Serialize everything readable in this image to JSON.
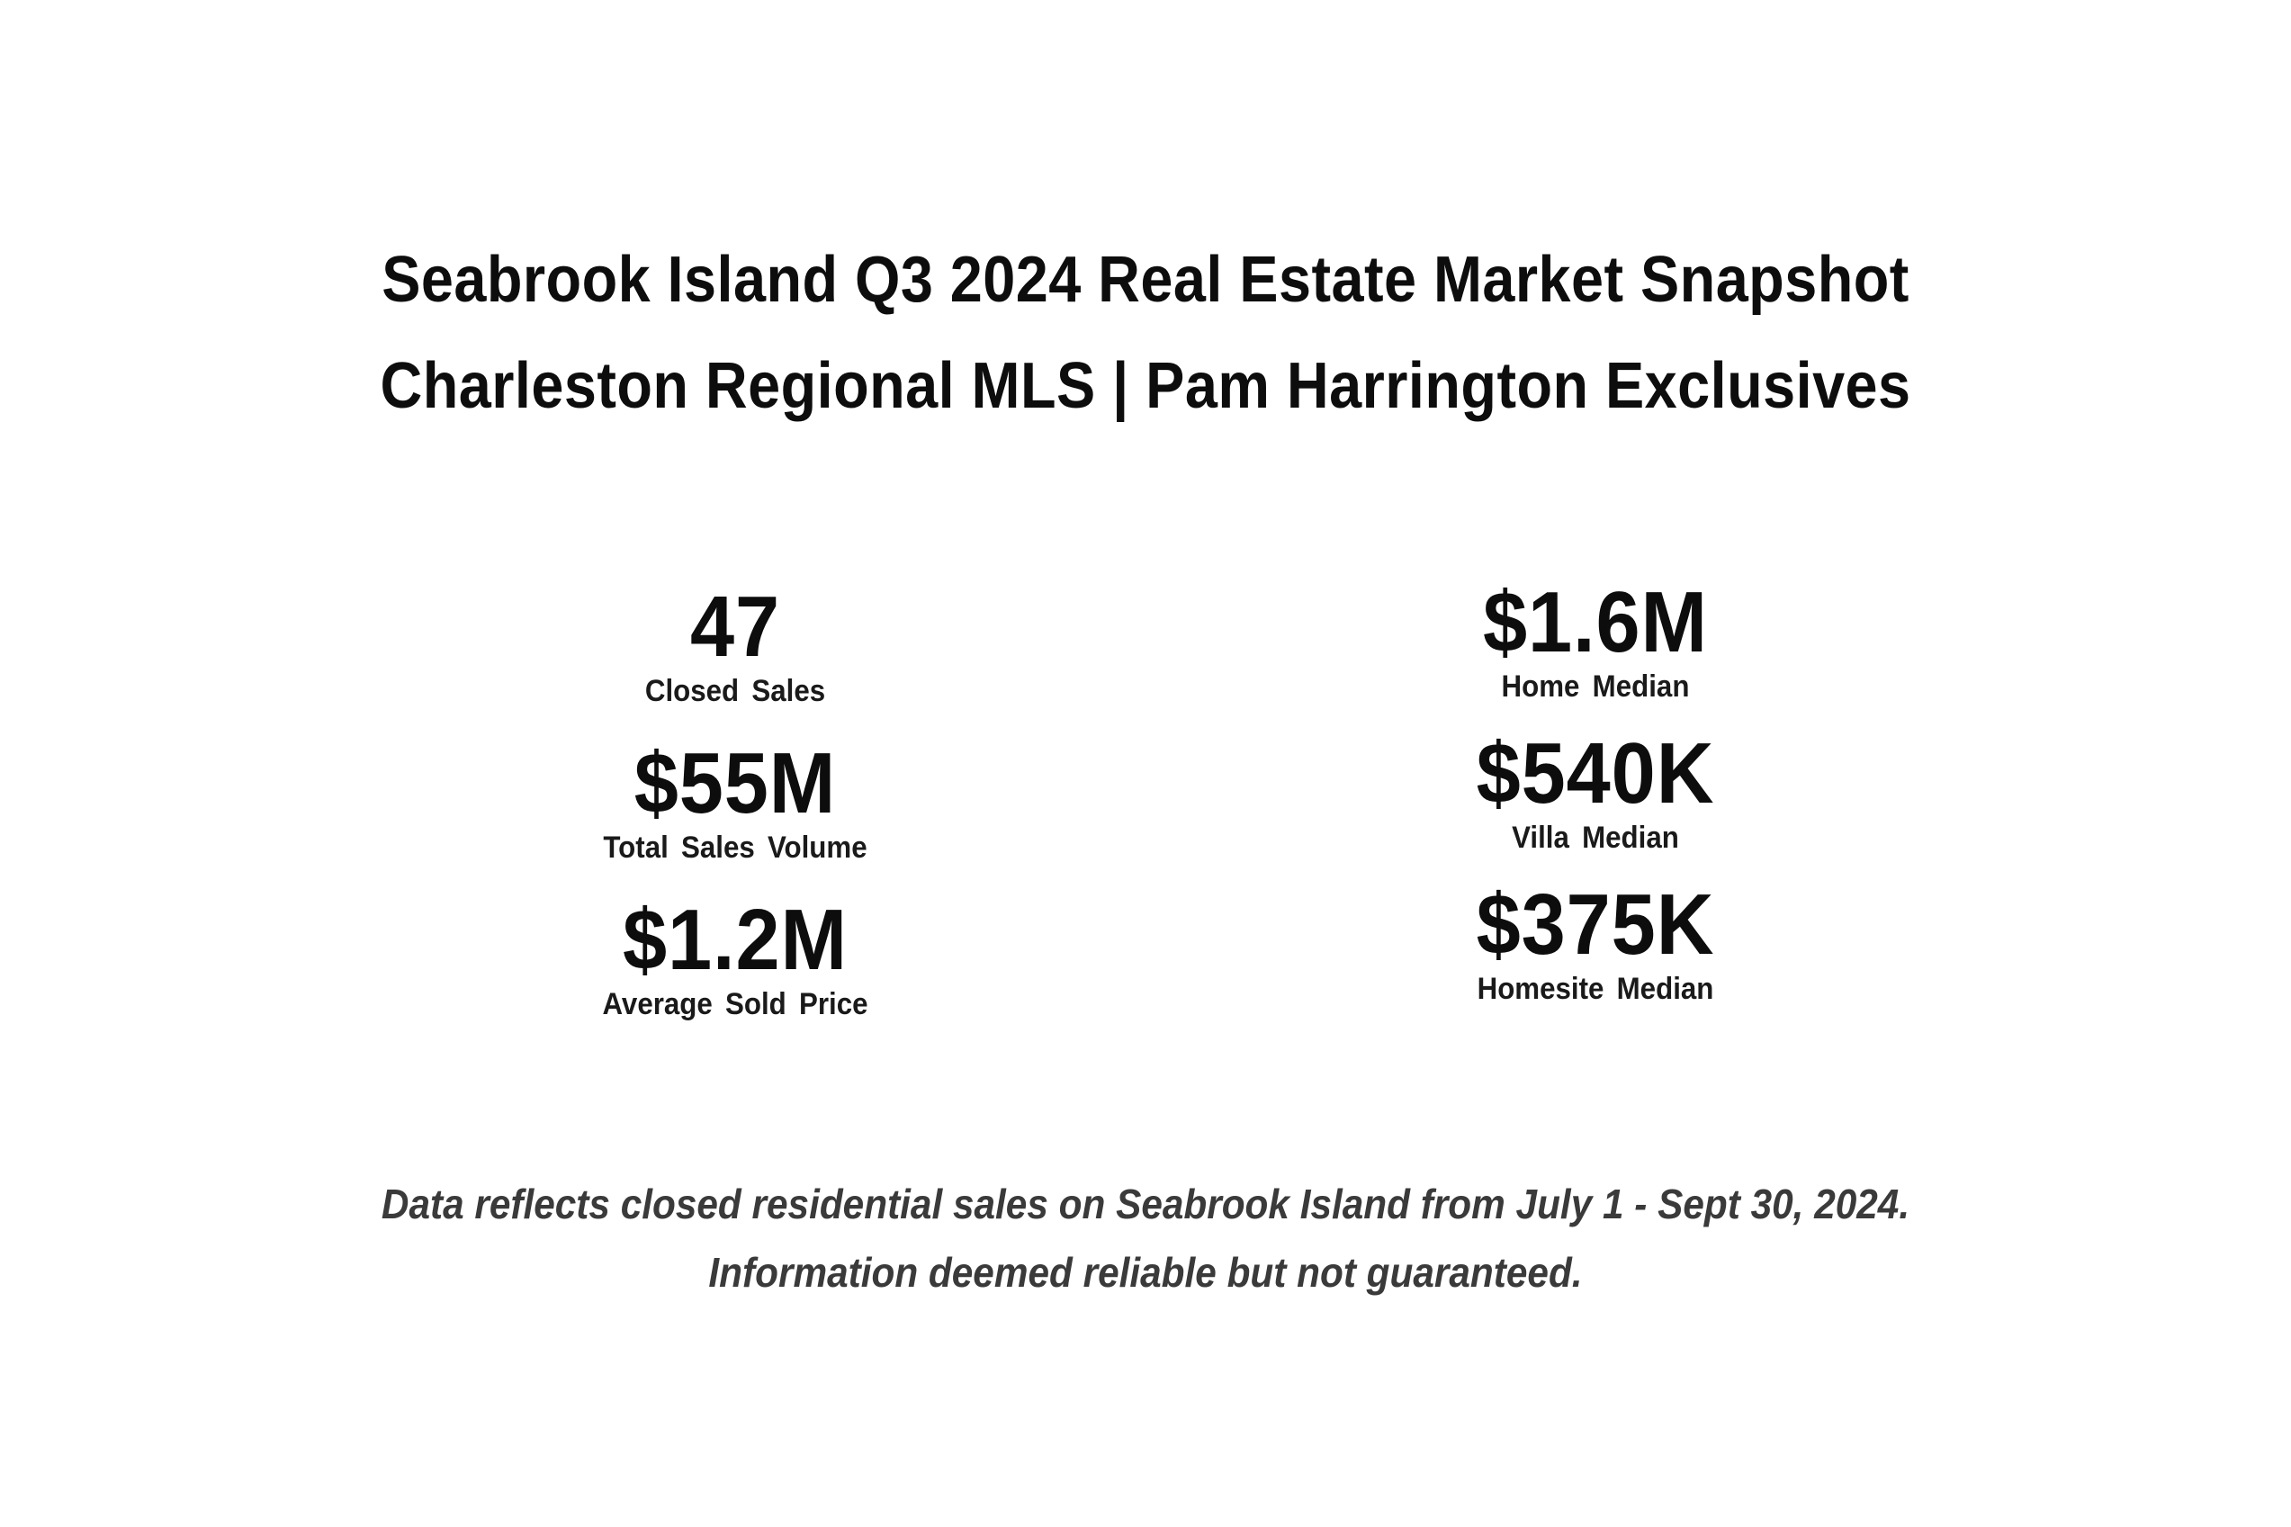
{
  "header": {
    "title": "Seabrook Island Q3 2024 Real Estate Market Snapshot",
    "subtitle": "Charleston Regional MLS | Pam Harrington Exclusives"
  },
  "stats_left": [
    {
      "value": "47",
      "label": "Closed Sales"
    },
    {
      "value": "$55M",
      "label": "Total Sales Volume"
    },
    {
      "value": "$1.2M",
      "label": "Average Sold Price"
    }
  ],
  "stats_right": [
    {
      "value": "$1.6M",
      "label": "Home Median"
    },
    {
      "value": "$540K",
      "label": "Villa Median"
    },
    {
      "value": "$375K",
      "label": "Homesite Median"
    }
  ],
  "footer": {
    "line1": "Data reflects closed residential sales on Seabrook Island from July 1 - Sept 30, 2024.",
    "line2": "Information deemed reliable but not guaranteed."
  }
}
